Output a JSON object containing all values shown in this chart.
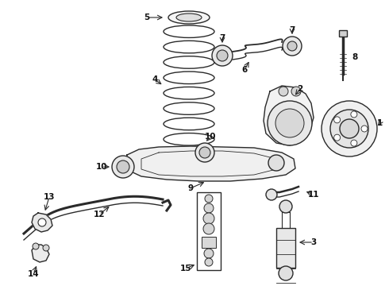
{
  "bg_color": "#ffffff",
  "line_color": "#2a2a2a",
  "label_color": "#111111",
  "figsize": [
    4.9,
    3.6
  ],
  "dpi": 100
}
